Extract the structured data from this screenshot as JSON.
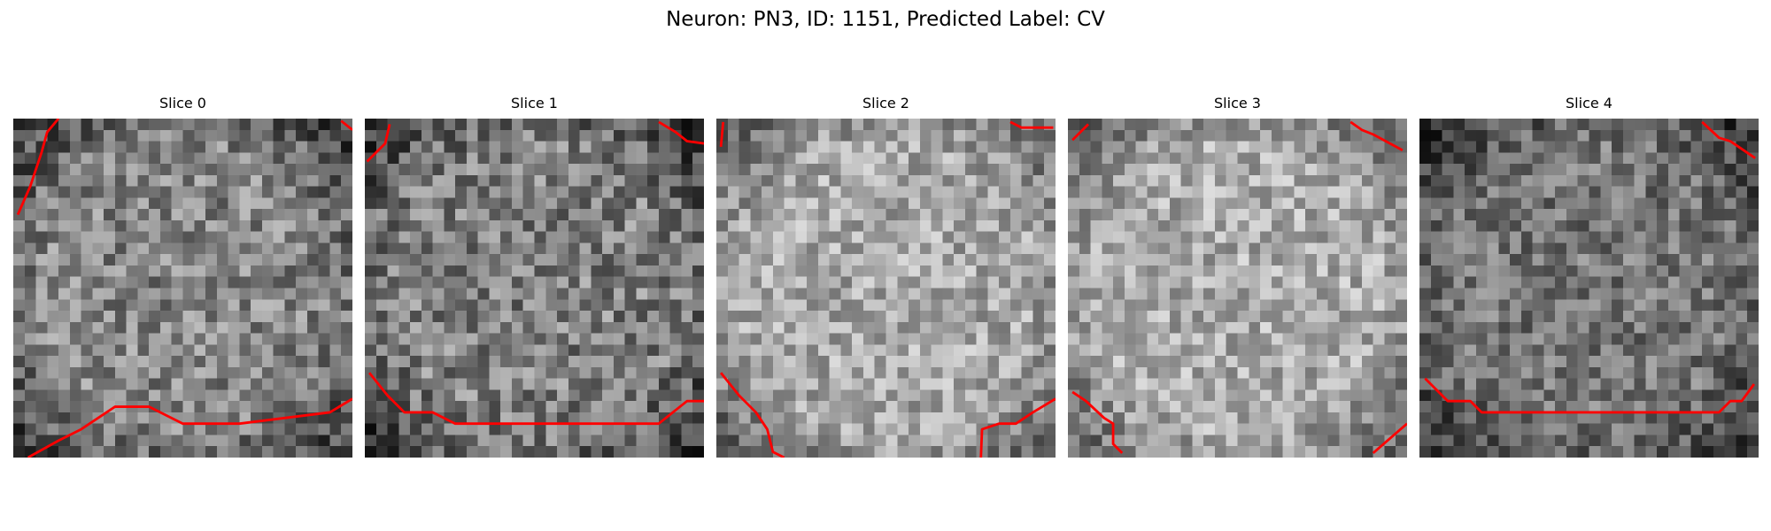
{
  "figure": {
    "title": "Neuron: PN3, ID: 1151, Predicted Label: CV"
  },
  "colors": {
    "contour": "#ff0000",
    "background": "#ffffff"
  },
  "slices": [
    {
      "title": "Slice 0",
      "brightness": 0.52,
      "contrast": 0.22,
      "seed": 11,
      "contours": [
        [
          [
            1.3,
            30
          ],
          [
            4,
            28.5
          ],
          [
            6,
            27.5
          ],
          [
            9,
            25.5
          ],
          [
            12,
            25.5
          ],
          [
            15,
            27
          ],
          [
            20,
            27
          ],
          [
            28,
            26
          ],
          [
            30,
            24.8
          ]
        ],
        [
          [
            0.4,
            8.5
          ],
          [
            1.5,
            6
          ],
          [
            2.5,
            3
          ],
          [
            3,
            1.2
          ],
          [
            4,
            0
          ]
        ],
        [
          [
            29,
            0.2
          ],
          [
            30,
            1
          ]
        ]
      ]
    },
    {
      "title": "Slice 1",
      "brightness": 0.5,
      "contrast": 0.23,
      "seed": 23,
      "contours": [
        [
          [
            0.4,
            22.5
          ],
          [
            2,
            24.5
          ],
          [
            3.5,
            26
          ],
          [
            6,
            26
          ],
          [
            8,
            27
          ],
          [
            16,
            27
          ],
          [
            26,
            27
          ],
          [
            28.5,
            25
          ],
          [
            30,
            25
          ]
        ],
        [
          [
            0.2,
            3.8
          ],
          [
            1,
            3
          ],
          [
            1.8,
            2.2
          ],
          [
            2.2,
            0.5
          ]
        ],
        [
          [
            26,
            0.3
          ],
          [
            27.5,
            1.2
          ],
          [
            28.5,
            2
          ],
          [
            30,
            2.2
          ]
        ]
      ]
    },
    {
      "title": "Slice 2",
      "brightness": 0.66,
      "contrast": 0.2,
      "seed": 37,
      "contours": [
        [
          [
            0.4,
            22.5
          ],
          [
            2,
            24.5
          ],
          [
            3.5,
            26
          ],
          [
            4.5,
            27.5
          ],
          [
            5,
            29.5
          ],
          [
            6,
            30
          ]
        ],
        [
          [
            23.4,
            30
          ],
          [
            23.5,
            27.5
          ],
          [
            25,
            27
          ],
          [
            26.5,
            27
          ],
          [
            28,
            26
          ],
          [
            30,
            24.8
          ]
        ],
        [
          [
            26,
            0.3
          ],
          [
            27,
            0.8
          ],
          [
            29.8,
            0.8
          ]
        ],
        [
          [
            0.4,
            2.5
          ],
          [
            0.6,
            0.3
          ]
        ]
      ]
    },
    {
      "title": "Slice 3",
      "brightness": 0.67,
      "contrast": 0.2,
      "seed": 53,
      "contours": [
        [
          [
            0.4,
            24.2
          ],
          [
            1.6,
            25
          ],
          [
            3.2,
            26.5
          ],
          [
            4,
            27
          ],
          [
            4,
            28.8
          ],
          [
            4.8,
            29.6
          ]
        ],
        [
          [
            27,
            29.6
          ],
          [
            30,
            27
          ]
        ],
        [
          [
            25,
            0.3
          ],
          [
            26,
            1
          ],
          [
            27,
            1.4
          ],
          [
            29.6,
            2.8
          ]
        ],
        [
          [
            0.4,
            1.9
          ],
          [
            1.8,
            0.5
          ]
        ]
      ]
    },
    {
      "title": "Slice 4",
      "brightness": 0.46,
      "contrast": 0.2,
      "seed": 71,
      "contours": [
        [
          [
            0.5,
            23
          ],
          [
            2.5,
            25
          ],
          [
            4.5,
            25
          ],
          [
            5.5,
            26
          ],
          [
            10,
            26
          ],
          [
            20,
            26
          ],
          [
            26.5,
            26
          ],
          [
            27.5,
            25
          ],
          [
            28.5,
            25
          ],
          [
            29.6,
            23.5
          ]
        ],
        [
          [
            25,
            0.3
          ],
          [
            26.5,
            1.7
          ],
          [
            27.5,
            2
          ],
          [
            29.7,
            3.5
          ]
        ]
      ]
    }
  ]
}
